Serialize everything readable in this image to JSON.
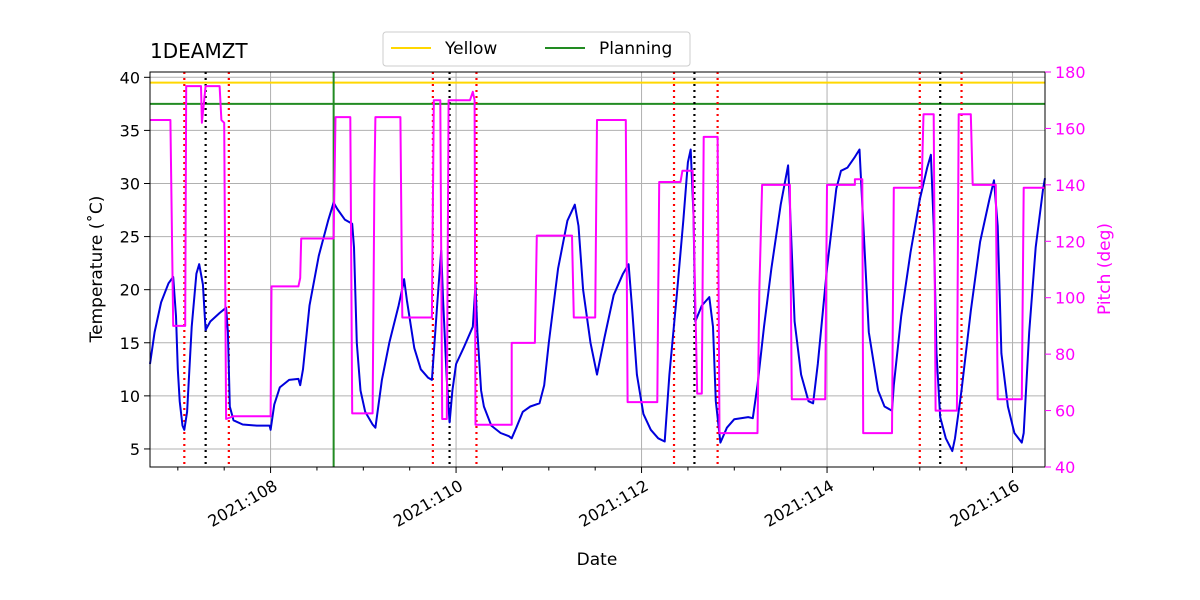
{
  "chart_data": {
    "type": "line",
    "title": "1DEAMZT",
    "xlabel": "Date",
    "ylabel": "Temperature ($^\\circ$C)",
    "ylabel_display": "Temperature (˚C)",
    "y2label": "Pitch (deg)",
    "xlim": [
      106.7,
      116.35
    ],
    "ylim": [
      3.3,
      40.5
    ],
    "y2lim": [
      40,
      180
    ],
    "xticks": [
      108,
      110,
      112,
      114,
      116
    ],
    "xtick_labels": [
      "2021:108",
      "2021:110",
      "2021:112",
      "2021:114",
      "2021:116"
    ],
    "yticks": [
      5,
      10,
      15,
      20,
      25,
      30,
      35,
      40
    ],
    "y2ticks": [
      40,
      60,
      80,
      100,
      120,
      140,
      160,
      180
    ],
    "grid": true,
    "legend": {
      "placement": "top-center",
      "entries": [
        "Yellow",
        "Planning"
      ]
    },
    "colors": {
      "temperature": "#0000dd",
      "pitch": "#ff00ff",
      "yellow": "#ffd700",
      "planning": "#228b22",
      "red_vline": "#ff0000",
      "black_vline": "#000000"
    },
    "hlines": [
      {
        "name": "Yellow",
        "y": 39.5
      },
      {
        "name": "Planning",
        "y": 37.5
      }
    ],
    "red_vlines": [
      107.07,
      107.55,
      109.75,
      110.22,
      112.35,
      112.82,
      115.0,
      115.45
    ],
    "black_vlines": [
      107.3,
      109.93,
      112.57,
      115.22
    ],
    "green_vlines": [
      108.68
    ],
    "series": [
      {
        "axis": "left",
        "values": [
          [
            106.7,
            13.0
          ],
          [
            106.75,
            16.0
          ],
          [
            106.82,
            18.8
          ],
          [
            106.9,
            20.6
          ],
          [
            106.95,
            21.2
          ],
          [
            106.98,
            17.5
          ],
          [
            107.0,
            12.5
          ],
          [
            107.02,
            9.5
          ],
          [
            107.05,
            7.2
          ],
          [
            107.07,
            6.8
          ],
          [
            107.1,
            8.5
          ],
          [
            107.15,
            16.5
          ],
          [
            107.2,
            21.5
          ],
          [
            107.23,
            22.4
          ],
          [
            107.27,
            20.5
          ],
          [
            107.3,
            16.2
          ],
          [
            107.35,
            17.0
          ],
          [
            107.45,
            17.8
          ],
          [
            107.52,
            18.3
          ],
          [
            107.54,
            16.0
          ],
          [
            107.56,
            9.0
          ],
          [
            107.6,
            7.7
          ],
          [
            107.7,
            7.3
          ],
          [
            107.85,
            7.2
          ],
          [
            107.99,
            7.2
          ],
          [
            108.0,
            6.8
          ],
          [
            108.04,
            9.2
          ],
          [
            108.1,
            10.8
          ],
          [
            108.2,
            11.5
          ],
          [
            108.3,
            11.6
          ],
          [
            108.32,
            11.0
          ],
          [
            108.35,
            12.5
          ],
          [
            108.42,
            18.5
          ],
          [
            108.52,
            23.2
          ],
          [
            108.62,
            26.5
          ],
          [
            108.68,
            28.2
          ],
          [
            108.72,
            27.6
          ],
          [
            108.8,
            26.6
          ],
          [
            108.88,
            26.2
          ],
          [
            108.9,
            24.0
          ],
          [
            108.93,
            15.0
          ],
          [
            108.97,
            10.5
          ],
          [
            109.02,
            8.5
          ],
          [
            109.1,
            7.3
          ],
          [
            109.13,
            7.0
          ],
          [
            109.2,
            11.5
          ],
          [
            109.28,
            15.0
          ],
          [
            109.38,
            18.5
          ],
          [
            109.43,
            20.5
          ],
          [
            109.44,
            21.0
          ],
          [
            109.47,
            19.0
          ],
          [
            109.55,
            14.5
          ],
          [
            109.62,
            12.5
          ],
          [
            109.7,
            11.7
          ],
          [
            109.74,
            11.5
          ],
          [
            109.8,
            19.0
          ],
          [
            109.84,
            23.7
          ],
          [
            109.86,
            19.0
          ],
          [
            109.9,
            11.5
          ],
          [
            109.93,
            7.5
          ],
          [
            109.96,
            10.5
          ],
          [
            110.0,
            13.0
          ],
          [
            110.08,
            14.5
          ],
          [
            110.18,
            16.5
          ],
          [
            110.21,
            20.5
          ],
          [
            110.23,
            16.0
          ],
          [
            110.27,
            10.5
          ],
          [
            110.3,
            9.0
          ],
          [
            110.38,
            7.2
          ],
          [
            110.48,
            6.5
          ],
          [
            110.57,
            6.2
          ],
          [
            110.6,
            6.0
          ],
          [
            110.65,
            7.0
          ],
          [
            110.72,
            8.5
          ],
          [
            110.8,
            9.0
          ],
          [
            110.9,
            9.3
          ],
          [
            110.95,
            11.0
          ],
          [
            111.0,
            15.0
          ],
          [
            111.1,
            22.0
          ],
          [
            111.2,
            26.5
          ],
          [
            111.28,
            28.0
          ],
          [
            111.32,
            26.0
          ],
          [
            111.37,
            20.0
          ],
          [
            111.45,
            15.0
          ],
          [
            111.52,
            12.0
          ],
          [
            111.6,
            15.5
          ],
          [
            111.7,
            19.5
          ],
          [
            111.8,
            21.5
          ],
          [
            111.86,
            22.4
          ],
          [
            111.9,
            18.0
          ],
          [
            111.95,
            12.0
          ],
          [
            112.02,
            8.3
          ],
          [
            112.1,
            6.8
          ],
          [
            112.18,
            6.0
          ],
          [
            112.25,
            5.7
          ],
          [
            112.3,
            12.0
          ],
          [
            112.38,
            19.5
          ],
          [
            112.45,
            26.5
          ],
          [
            112.5,
            32.0
          ],
          [
            112.53,
            33.2
          ],
          [
            112.56,
            27.0
          ],
          [
            112.58,
            17.0
          ],
          [
            112.65,
            18.5
          ],
          [
            112.73,
            19.3
          ],
          [
            112.77,
            16.5
          ],
          [
            112.8,
            9.5
          ],
          [
            112.85,
            5.6
          ],
          [
            112.92,
            7.0
          ],
          [
            113.0,
            7.8
          ],
          [
            113.15,
            8.0
          ],
          [
            113.2,
            7.9
          ],
          [
            113.25,
            11.0
          ],
          [
            113.32,
            16.5
          ],
          [
            113.4,
            22.0
          ],
          [
            113.5,
            28.0
          ],
          [
            113.58,
            31.7
          ],
          [
            113.6,
            28.0
          ],
          [
            113.65,
            17.0
          ],
          [
            113.72,
            12.0
          ],
          [
            113.8,
            9.5
          ],
          [
            113.85,
            9.3
          ],
          [
            113.9,
            13.0
          ],
          [
            114.0,
            22.0
          ],
          [
            114.1,
            29.5
          ],
          [
            114.15,
            31.2
          ],
          [
            114.22,
            31.5
          ],
          [
            114.3,
            32.5
          ],
          [
            114.35,
            33.2
          ],
          [
            114.38,
            28.0
          ],
          [
            114.45,
            16.0
          ],
          [
            114.55,
            10.5
          ],
          [
            114.62,
            9.0
          ],
          [
            114.7,
            8.6
          ],
          [
            114.72,
            11.0
          ],
          [
            114.8,
            17.5
          ],
          [
            114.9,
            23.5
          ],
          [
            115.0,
            28.5
          ],
          [
            115.08,
            31.5
          ],
          [
            115.12,
            32.7
          ],
          [
            115.15,
            26.0
          ],
          [
            115.18,
            14.0
          ],
          [
            115.22,
            8.0
          ],
          [
            115.28,
            6.0
          ],
          [
            115.35,
            4.8
          ],
          [
            115.38,
            6.0
          ],
          [
            115.45,
            10.5
          ],
          [
            115.55,
            18.0
          ],
          [
            115.65,
            24.5
          ],
          [
            115.75,
            28.5
          ],
          [
            115.8,
            30.3
          ],
          [
            115.84,
            26.0
          ],
          [
            115.88,
            14.0
          ],
          [
            115.95,
            9.0
          ],
          [
            116.02,
            6.5
          ],
          [
            116.1,
            5.6
          ],
          [
            116.12,
            6.5
          ],
          [
            116.18,
            16.0
          ],
          [
            116.25,
            24.0
          ],
          [
            116.33,
            29.5
          ],
          [
            116.35,
            30.5
          ]
        ]
      },
      {
        "axis": "right",
        "values": [
          [
            106.7,
            163
          ],
          [
            106.9,
            163
          ],
          [
            106.92,
            163
          ],
          [
            106.95,
            90
          ],
          [
            107.08,
            90
          ],
          [
            107.09,
            175
          ],
          [
            107.25,
            175
          ],
          [
            107.26,
            162
          ],
          [
            107.3,
            175
          ],
          [
            107.45,
            175
          ],
          [
            107.47,
            163
          ],
          [
            107.5,
            162
          ],
          [
            107.52,
            57
          ],
          [
            107.6,
            58
          ],
          [
            108.0,
            58
          ],
          [
            108.01,
            104
          ],
          [
            108.3,
            104
          ],
          [
            108.32,
            107
          ],
          [
            108.33,
            121
          ],
          [
            108.68,
            121
          ],
          [
            108.7,
            164
          ],
          [
            108.86,
            164
          ],
          [
            108.88,
            59
          ],
          [
            109.05,
            59
          ],
          [
            109.1,
            59
          ],
          [
            109.12,
            141
          ],
          [
            109.13,
            164
          ],
          [
            109.4,
            164
          ],
          [
            109.42,
            93
          ],
          [
            109.74,
            93
          ],
          [
            109.76,
            170
          ],
          [
            109.83,
            170
          ],
          [
            109.85,
            57
          ],
          [
            109.9,
            57
          ],
          [
            109.92,
            170
          ],
          [
            110.15,
            170
          ],
          [
            110.18,
            173
          ],
          [
            110.2,
            170
          ],
          [
            110.21,
            55
          ],
          [
            110.57,
            55
          ],
          [
            110.6,
            55
          ],
          [
            110.6,
            84
          ],
          [
            110.85,
            84
          ],
          [
            110.87,
            122
          ],
          [
            111.25,
            122
          ],
          [
            111.27,
            93
          ],
          [
            111.5,
            93
          ],
          [
            111.52,
            163
          ],
          [
            111.83,
            163
          ],
          [
            111.85,
            63
          ],
          [
            112.17,
            63
          ],
          [
            112.19,
            141
          ],
          [
            112.42,
            141
          ],
          [
            112.44,
            145
          ],
          [
            112.55,
            145
          ],
          [
            112.6,
            66
          ],
          [
            112.65,
            66
          ],
          [
            112.67,
            157
          ],
          [
            112.82,
            157
          ],
          [
            112.84,
            52
          ],
          [
            113.25,
            52
          ],
          [
            113.27,
            102
          ],
          [
            113.3,
            140
          ],
          [
            113.6,
            140
          ],
          [
            113.62,
            64
          ],
          [
            113.98,
            64
          ],
          [
            114.0,
            140
          ],
          [
            114.3,
            140
          ],
          [
            114.3,
            142
          ],
          [
            114.38,
            142
          ],
          [
            114.39,
            52
          ],
          [
            114.7,
            52
          ],
          [
            114.72,
            139
          ],
          [
            115.02,
            139
          ],
          [
            115.04,
            165
          ],
          [
            115.15,
            165
          ],
          [
            115.17,
            60
          ],
          [
            115.4,
            60
          ],
          [
            115.42,
            165
          ],
          [
            115.55,
            165
          ],
          [
            115.57,
            140
          ],
          [
            115.82,
            140
          ],
          [
            115.84,
            64
          ],
          [
            116.1,
            64
          ],
          [
            116.12,
            139
          ],
          [
            116.35,
            139
          ]
        ]
      }
    ]
  }
}
